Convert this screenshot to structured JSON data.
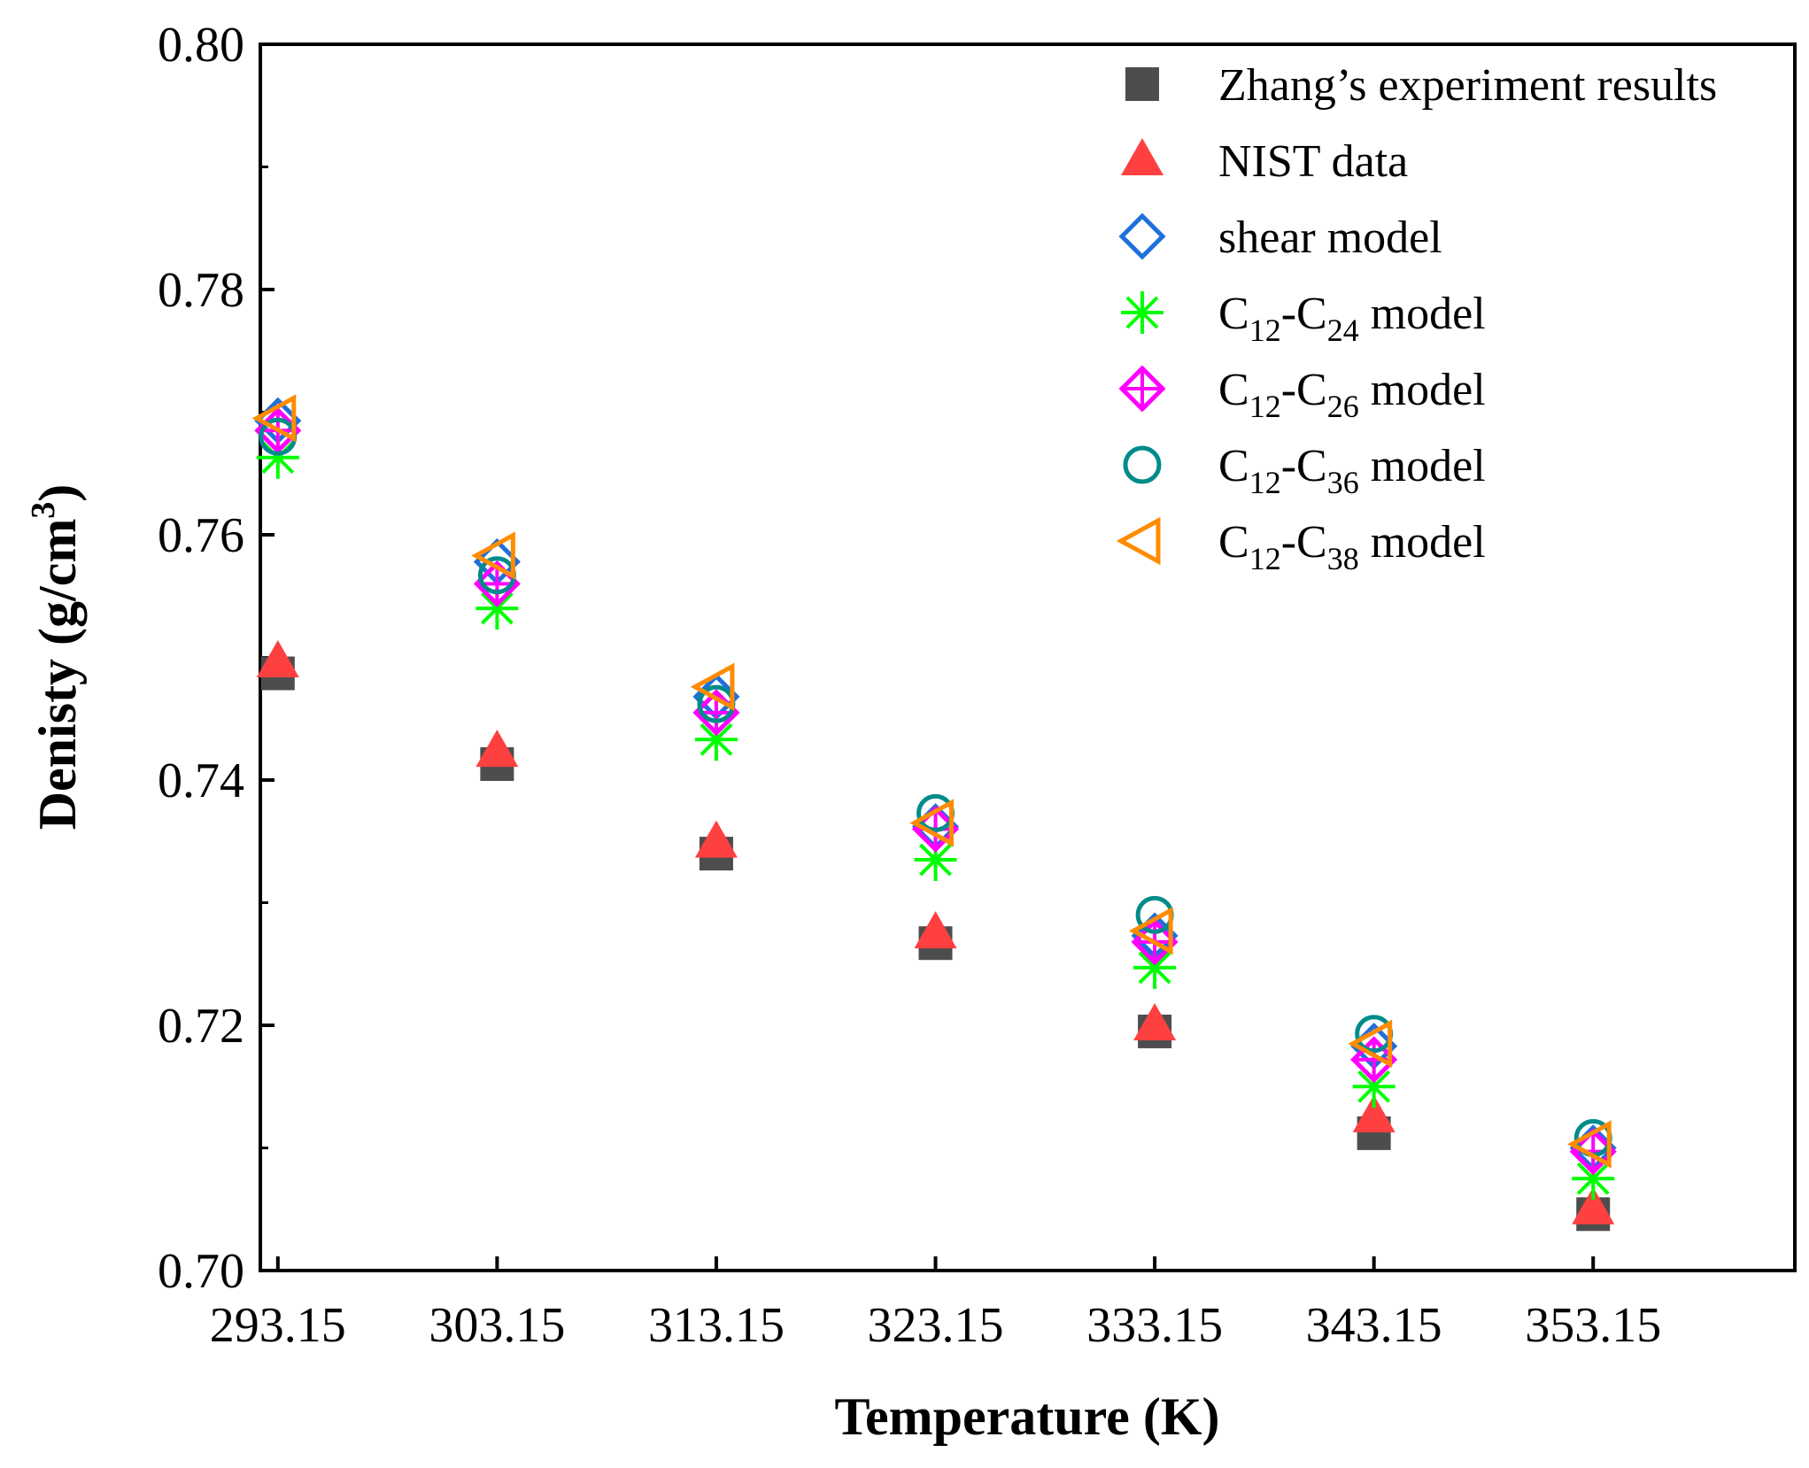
{
  "chart_data": {
    "type": "scatter",
    "xlabel": "Temperature (K)",
    "ylabel": "Denisty (g/cm",
    "ylabel_sup": "3",
    "ylabel_close": ")",
    "categories": [
      "293.15",
      "303.15",
      "313.15",
      "323.15",
      "333.15",
      "343.15",
      "353.15"
    ],
    "xlim": [
      292.35,
      362.35
    ],
    "ylim": [
      0.7,
      0.8
    ],
    "yticks": [
      "0.70",
      "0.72",
      "0.74",
      "0.76",
      "0.78",
      "0.80"
    ],
    "legend_position": "top-right",
    "series": [
      {
        "name": "Zhang’s experiment results",
        "marker": "square",
        "color": "#4d4d4d",
        "values": [
          0.7487,
          0.7413,
          0.734,
          0.7267,
          0.7195,
          0.7112,
          0.7046
        ]
      },
      {
        "name": "NIST data",
        "marker": "triangle-up",
        "color": "#ff4040",
        "values": [
          0.7496,
          0.7423,
          0.7349,
          0.7275,
          0.72,
          0.7125,
          0.705
        ]
      },
      {
        "name": "shear model",
        "marker": "diamond",
        "color": "#1f6fdc",
        "values": [
          0.7693,
          0.7578,
          0.7468,
          0.7362,
          0.7273,
          0.7183,
          0.71
        ]
      },
      {
        "name": "C12-C24 model",
        "prefix": "C",
        "sub1": "12",
        "mid": "-C",
        "sub2": "24",
        "suffix": " model",
        "marker": "asterisk",
        "color": "#00ff00",
        "values": [
          0.7663,
          0.754,
          0.7433,
          0.7335,
          0.7247,
          0.715,
          0.7075
        ]
      },
      {
        "name": "C12-C26 model",
        "prefix": "C",
        "sub1": "12",
        "mid": "-C",
        "sub2": "26",
        "suffix": " model",
        "marker": "diamond-cross",
        "color": "#ff00ff",
        "values": [
          0.7685,
          0.756,
          0.7455,
          0.736,
          0.7268,
          0.7172,
          0.7097
        ]
      },
      {
        "name": "C12-C36 model",
        "prefix": "C",
        "sub1": "12",
        "mid": "-C",
        "sub2": "36",
        "suffix": " model",
        "marker": "circle",
        "color": "#008b8b",
        "values": [
          0.768,
          0.7567,
          0.7462,
          0.7373,
          0.729,
          0.7193,
          0.7108
        ]
      },
      {
        "name": "C12-C38 model",
        "prefix": "C",
        "sub1": "12",
        "mid": "-C",
        "sub2": "38",
        "suffix": " model",
        "marker": "triangle-left",
        "color": "#ff8c00",
        "values": [
          0.7695,
          0.7583,
          0.7476,
          0.7365,
          0.7277,
          0.7185,
          0.7103
        ]
      }
    ]
  }
}
